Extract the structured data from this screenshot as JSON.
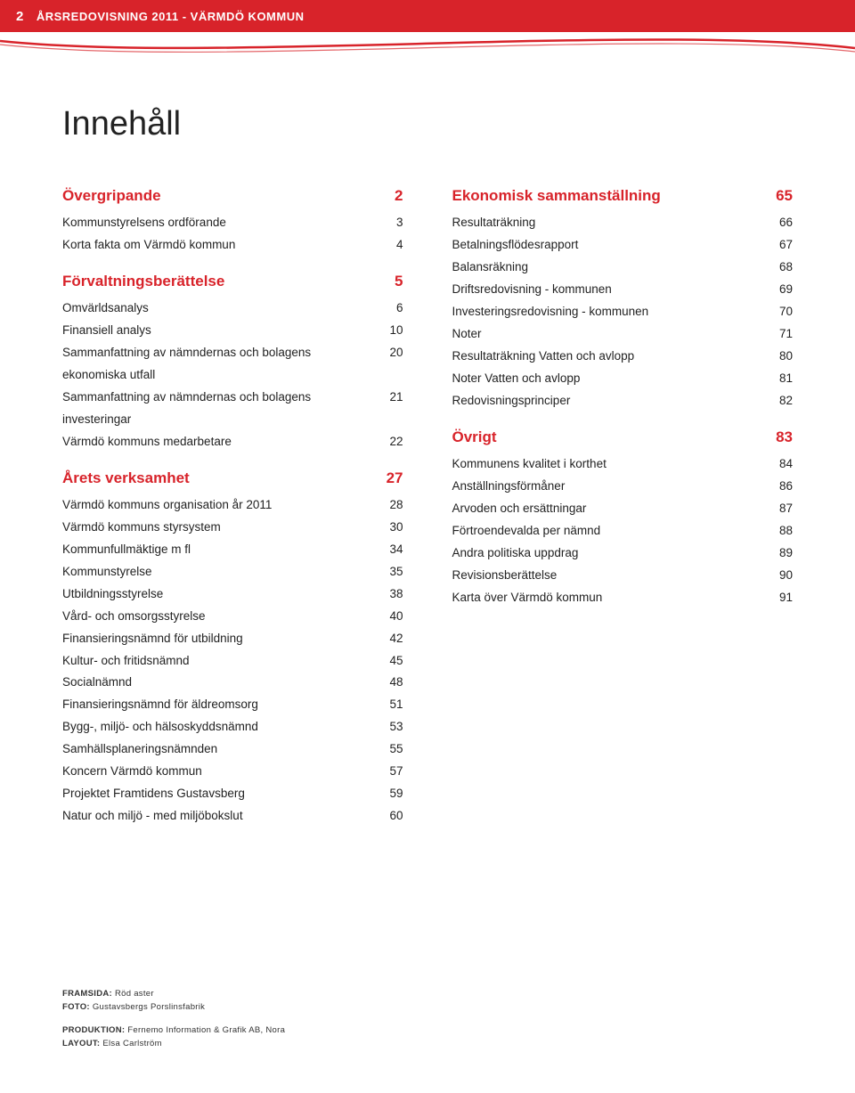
{
  "header": {
    "page_number": "2",
    "doc_title": "ÅRSREDOVISNING 2011 - VÄRMDÖ KOMMUN"
  },
  "main_title": "Innehåll",
  "swoosh_color": "#d8232a",
  "swoosh_bg": "#f5f5f5",
  "left_column": [
    {
      "type": "section",
      "label": "Övergripande",
      "page": "2"
    },
    {
      "type": "item",
      "label": "Kommunstyrelsens ordförande",
      "page": "3"
    },
    {
      "type": "item",
      "label": "Korta fakta om Värmdö kommun",
      "page": "4"
    },
    {
      "type": "section",
      "label": "Förvaltningsberättelse",
      "page": "5"
    },
    {
      "type": "item",
      "label": "Omvärldsanalys",
      "page": "6"
    },
    {
      "type": "item",
      "label": "Finansiell analys",
      "page": "10"
    },
    {
      "type": "item",
      "label": "Sammanfattning av nämndernas och bolagens ekonomiska utfall",
      "page": "20"
    },
    {
      "type": "item",
      "label": "Sammanfattning av nämndernas och bolagens investeringar",
      "page": "21"
    },
    {
      "type": "item",
      "label": "Värmdö kommuns medarbetare",
      "page": "22"
    },
    {
      "type": "section",
      "label": "Årets verksamhet",
      "page": "27"
    },
    {
      "type": "item",
      "label": "Värmdö kommuns organisation år 2011",
      "page": "28"
    },
    {
      "type": "item",
      "label": "Värmdö kommuns styrsystem",
      "page": "30"
    },
    {
      "type": "item",
      "label": "Kommunfullmäktige m fl",
      "page": "34"
    },
    {
      "type": "item",
      "label": "Kommunstyrelse",
      "page": "35"
    },
    {
      "type": "item",
      "label": "Utbildningsstyrelse",
      "page": "38"
    },
    {
      "type": "item",
      "label": "Vård- och omsorgsstyrelse",
      "page": "40"
    },
    {
      "type": "item",
      "label": "Finansieringsnämnd för utbildning",
      "page": "42"
    },
    {
      "type": "item",
      "label": "Kultur- och fritidsnämnd",
      "page": "45"
    },
    {
      "type": "item",
      "label": "Socialnämnd",
      "page": "48"
    },
    {
      "type": "item",
      "label": "Finansieringsnämnd för äldreomsorg",
      "page": "51"
    },
    {
      "type": "item",
      "label": "Bygg-, miljö- och hälsoskyddsnämnd",
      "page": "53"
    },
    {
      "type": "item",
      "label": "Samhällsplaneringsnämnden",
      "page": "55"
    },
    {
      "type": "item",
      "label": "Koncern Värmdö kommun",
      "page": "57"
    },
    {
      "type": "item",
      "label": "Projektet Framtidens Gustavsberg",
      "page": "59"
    },
    {
      "type": "item",
      "label": "Natur och miljö - med miljöbokslut",
      "page": "60"
    }
  ],
  "right_column": [
    {
      "type": "section",
      "label": "Ekonomisk sammanställning",
      "page": "65"
    },
    {
      "type": "item",
      "label": "Resultaträkning",
      "page": "66"
    },
    {
      "type": "item",
      "label": "Betalningsflödesrapport",
      "page": "67"
    },
    {
      "type": "item",
      "label": "Balansräkning",
      "page": "68"
    },
    {
      "type": "item",
      "label": "Driftsredovisning - kommunen",
      "page": "69"
    },
    {
      "type": "item",
      "label": "Investeringsredovisning - kommunen",
      "page": "70"
    },
    {
      "type": "item",
      "label": "Noter",
      "page": "71"
    },
    {
      "type": "item",
      "label": "Resultaträkning Vatten och avlopp",
      "page": "80"
    },
    {
      "type": "item",
      "label": "Noter Vatten och avlopp",
      "page": "81"
    },
    {
      "type": "item",
      "label": "Redovisningsprinciper",
      "page": "82"
    },
    {
      "type": "section",
      "label": "Övrigt",
      "page": "83"
    },
    {
      "type": "item",
      "label": "Kommunens kvalitet i korthet",
      "page": "84"
    },
    {
      "type": "item",
      "label": "Anställningsförmåner",
      "page": "86"
    },
    {
      "type": "item",
      "label": "Arvoden och ersättningar",
      "page": "87"
    },
    {
      "type": "item",
      "label": "Förtroendevalda per nämnd",
      "page": "88"
    },
    {
      "type": "item",
      "label": "Andra politiska uppdrag",
      "page": "89"
    },
    {
      "type": "item",
      "label": "Revisionsberättelse",
      "page": "90"
    },
    {
      "type": "item",
      "label": "Karta över Värmdö kommun",
      "page": "91"
    }
  ],
  "credits": {
    "framsida_label": "FRAMSIDA:",
    "framsida_value": "Röd aster",
    "foto_label": "FOTO:",
    "foto_value": "Gustavsbergs Porslinsfabrik",
    "produktion_label": "PRODUKTION:",
    "produktion_value": "Fernemo Information & Grafik AB, Nora",
    "layout_label": "LAYOUT:",
    "layout_value": "Elsa Carlström"
  }
}
